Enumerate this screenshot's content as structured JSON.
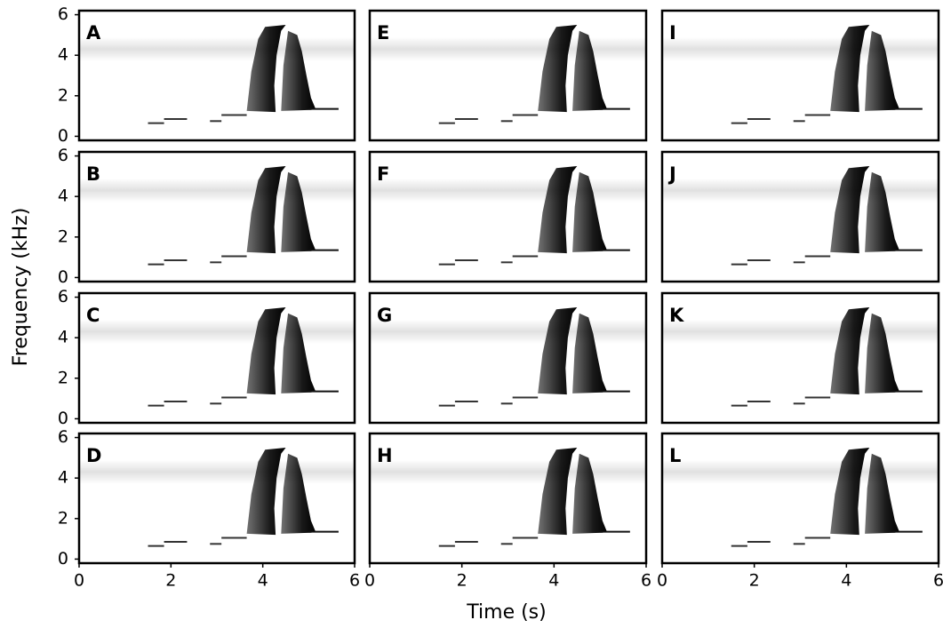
{
  "xlabel": "Time (s)",
  "ylabel": "Frequency (kHz)",
  "chart_data": [
    {
      "type": "spectrogram",
      "label": "A",
      "xlim": [
        0,
        6
      ],
      "ylim": [
        -0.2,
        6.2
      ],
      "yticks": [
        0,
        2,
        4,
        6
      ]
    },
    {
      "type": "spectrogram",
      "label": "B",
      "xlim": [
        0,
        6
      ],
      "ylim": [
        -0.2,
        6.2
      ],
      "yticks": [
        0,
        2,
        4,
        6
      ]
    },
    {
      "type": "spectrogram",
      "label": "C",
      "xlim": [
        0,
        6
      ],
      "ylim": [
        -0.2,
        6.2
      ],
      "yticks": [
        0,
        2,
        4,
        6
      ]
    },
    {
      "type": "spectrogram",
      "label": "D",
      "xlim": [
        0,
        6
      ],
      "ylim": [
        -0.2,
        6.2
      ],
      "yticks": [
        0,
        2,
        4,
        6
      ],
      "xticks": [
        0,
        2,
        4,
        6
      ]
    },
    {
      "type": "spectrogram",
      "label": "E",
      "xlim": [
        0,
        6
      ],
      "ylim": [
        -0.2,
        6.2
      ]
    },
    {
      "type": "spectrogram",
      "label": "F",
      "xlim": [
        0,
        6
      ],
      "ylim": [
        -0.2,
        6.2
      ]
    },
    {
      "type": "spectrogram",
      "label": "G",
      "xlim": [
        0,
        6
      ],
      "ylim": [
        -0.2,
        6.2
      ]
    },
    {
      "type": "spectrogram",
      "label": "H",
      "xlim": [
        0,
        6
      ],
      "ylim": [
        -0.2,
        6.2
      ],
      "xticks": [
        0,
        2,
        4,
        6
      ]
    },
    {
      "type": "spectrogram",
      "label": "I",
      "xlim": [
        0,
        6
      ],
      "ylim": [
        -0.2,
        6.2
      ]
    },
    {
      "type": "spectrogram",
      "label": "J",
      "xlim": [
        0,
        6
      ],
      "ylim": [
        -0.2,
        6.2
      ]
    },
    {
      "type": "spectrogram",
      "label": "K",
      "xlim": [
        0,
        6
      ],
      "ylim": [
        -0.2,
        6.2
      ]
    },
    {
      "type": "spectrogram",
      "label": "L",
      "xlim": [
        0,
        6
      ],
      "ylim": [
        -0.2,
        6.2
      ],
      "xticks": [
        0,
        2,
        4,
        6
      ]
    }
  ]
}
